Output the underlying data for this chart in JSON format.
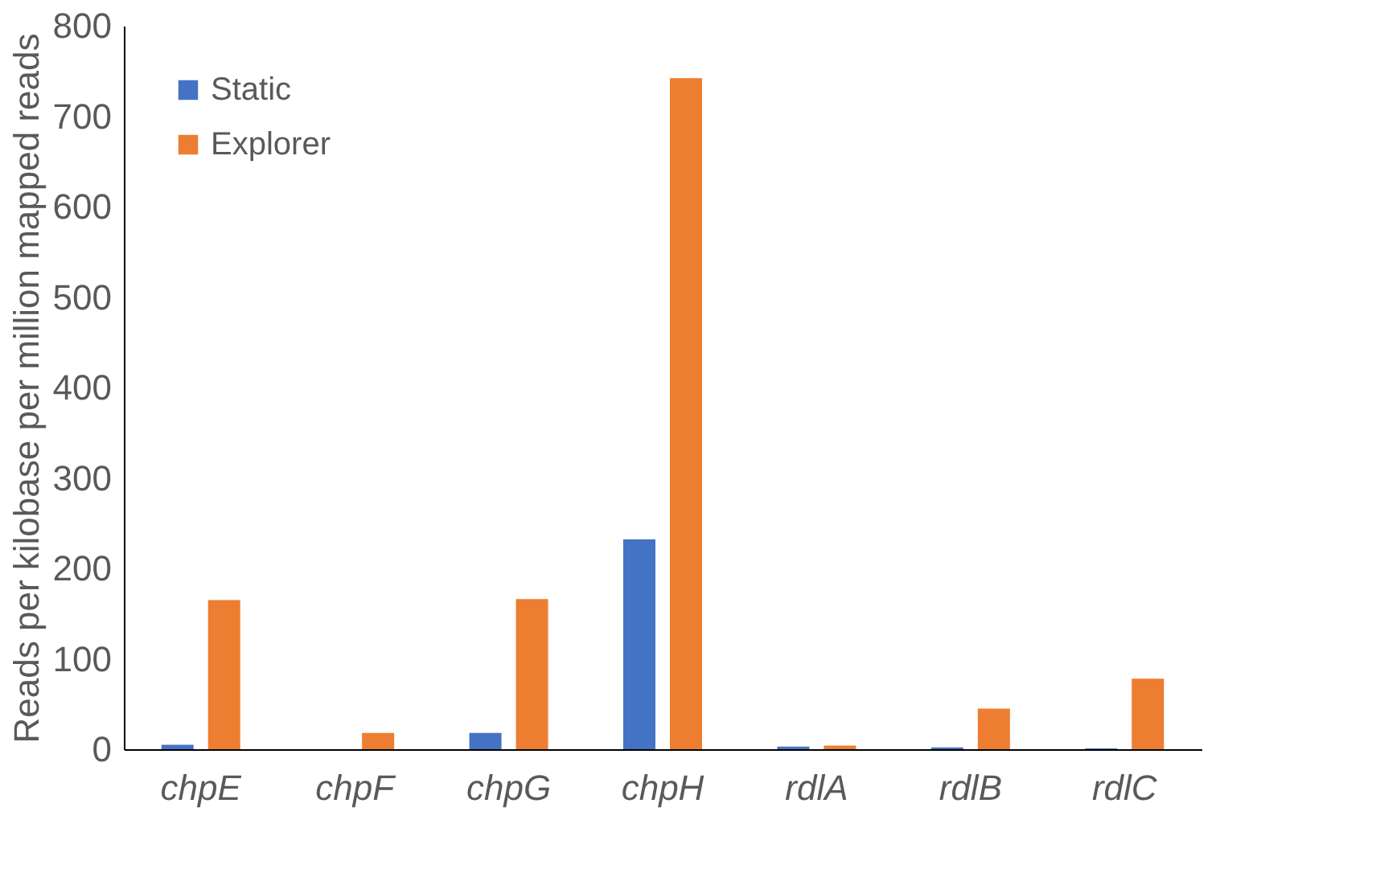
{
  "chart_data": {
    "type": "bar",
    "ylabel": "Reads per kilobase per million mapped reads",
    "categories": [
      "chpE",
      "chpF",
      "chpG",
      "chpH",
      "rdlA",
      "rdlB",
      "rdlC"
    ],
    "series": [
      {
        "name": "Static",
        "color": "#4472c4",
        "values": [
          5,
          0,
          18,
          232,
          3,
          2,
          1
        ]
      },
      {
        "name": "Explorer",
        "color": "#ed7d31",
        "values": [
          165,
          18,
          166,
          742,
          4,
          45,
          78
        ]
      }
    ],
    "ylim": [
      0,
      800
    ],
    "yticks": [
      0,
      100,
      200,
      300,
      400,
      500,
      600,
      700,
      800
    ],
    "grid": false,
    "legend": "top left"
  }
}
